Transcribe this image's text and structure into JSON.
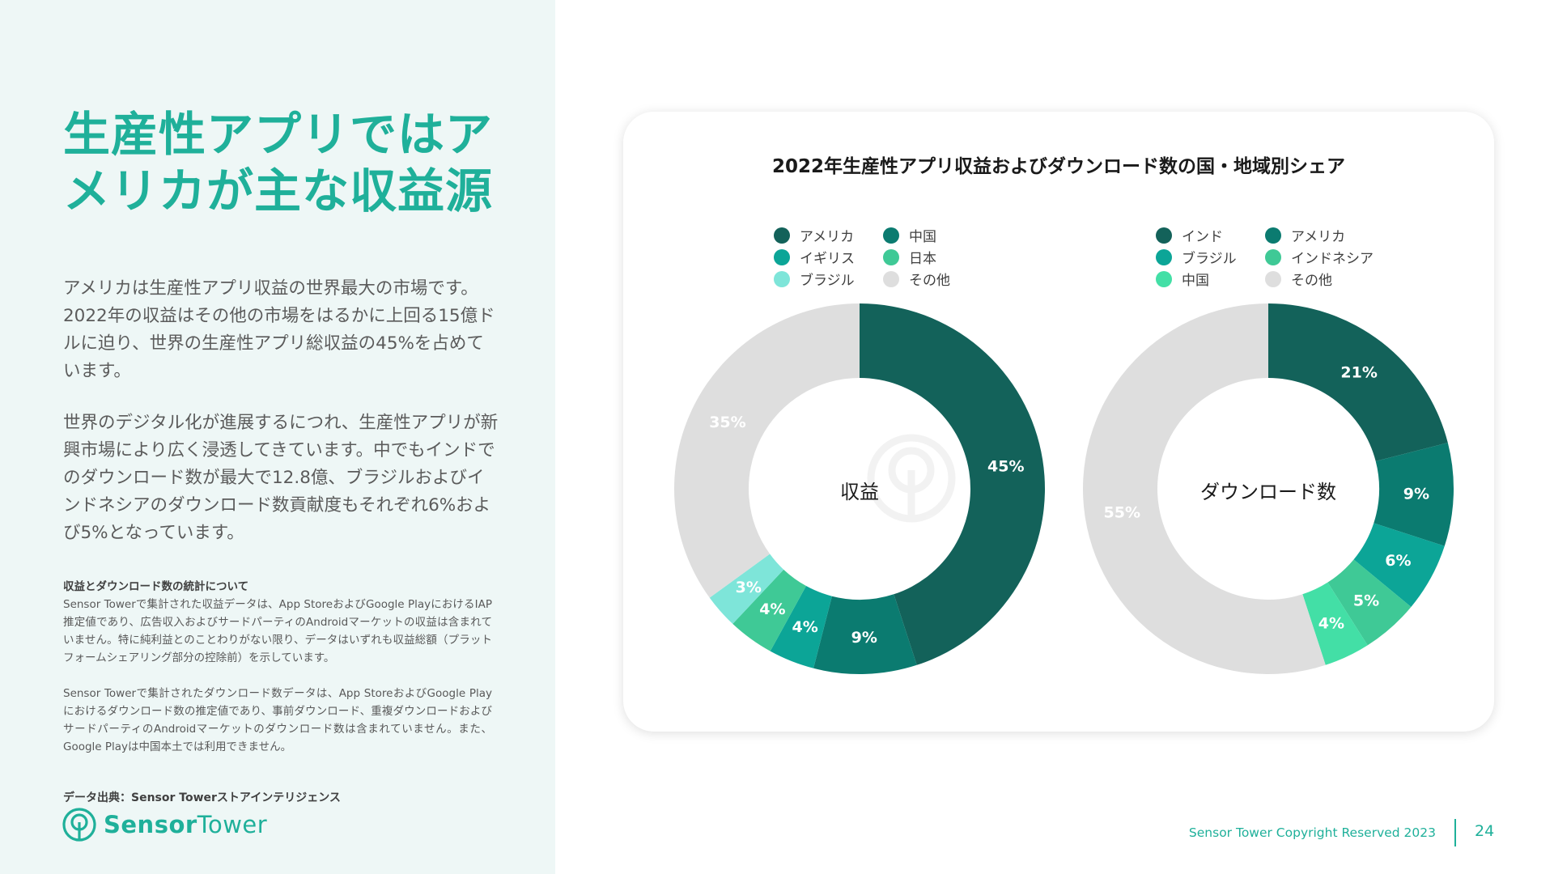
{
  "headline": "生産性アプリではアメリカが主な収益源",
  "paragraphs": [
    "アメリカは生産性アプリ収益の世界最大の市場です。2022年の収益はその他の市場をはるかに上回る15億ドルに迫り、世界の生産性アプリ総収益の45%を占めています。",
    "世界のデジタル化が進展するにつれ、生産性アプリが新興市場により広く浸透してきています。中でもインドでのダウンロード数が最大で12.8億、ブラジルおよびインドネシアのダウンロード数貢献度もそれぞれ6%および5%となっています。"
  ],
  "stats": {
    "heading": "収益とダウンロード数の統計について",
    "revenue_note": "Sensor Towerで集計された収益データは、App StoreおよびGoogle PlayにおけるIAP推定値であり、広告収入およびサードパーティのAndroidマーケットの収益は含まれていません。特に純利益とのことわりがない限り、データはいずれも収益総額（プラットフォームシェアリング部分の控除前）を示しています。",
    "download_note": "Sensor Towerで集計されたダウンロード数データは、App StoreおよびGoogle Playにおけるダウンロード数の推定値であり、事前ダウンロード、重複ダウンロードおよびサードパーティのAndroidマーケットのダウンロード数は含まれていません。また、Google Playは中国本土では利用できません。"
  },
  "data_source": "データ出典：Sensor Towerストアインテリジェンス",
  "logo": {
    "bold": "Sensor",
    "light": "Tower"
  },
  "footer": {
    "copyright": "Sensor Tower Copyright Reserved 2023",
    "page_number": "24"
  },
  "chart_data": [
    {
      "type": "pie",
      "title": "2022年生産性アプリ収益およびダウンロード数の国・地域別シェア",
      "center_label": "収益",
      "categories": [
        "アメリカ",
        "中国",
        "イギリス",
        "日本",
        "ブラジル",
        "その他"
      ],
      "values": [
        45,
        9,
        4,
        4,
        3,
        35
      ],
      "labels": [
        "45%",
        "9%",
        "4%",
        "4%",
        "3%",
        "35%"
      ],
      "colors": [
        "#13625a",
        "#0b7b70",
        "#0ca597",
        "#3fc996",
        "#7ee5d9",
        "#dedede"
      ],
      "legend_placement": "top",
      "donut": true
    },
    {
      "type": "pie",
      "center_label": "ダウンロード数",
      "categories": [
        "インド",
        "アメリカ",
        "ブラジル",
        "インドネシア",
        "中国",
        "その他"
      ],
      "values": [
        21,
        9,
        6,
        5,
        4,
        55
      ],
      "labels": [
        "21%",
        "9%",
        "6%",
        "5%",
        "4%",
        "55%"
      ],
      "colors": [
        "#13625a",
        "#0b7b70",
        "#0ca597",
        "#3fc996",
        "#43dfa6",
        "#dedede"
      ],
      "legend_placement": "top",
      "donut": true
    }
  ]
}
